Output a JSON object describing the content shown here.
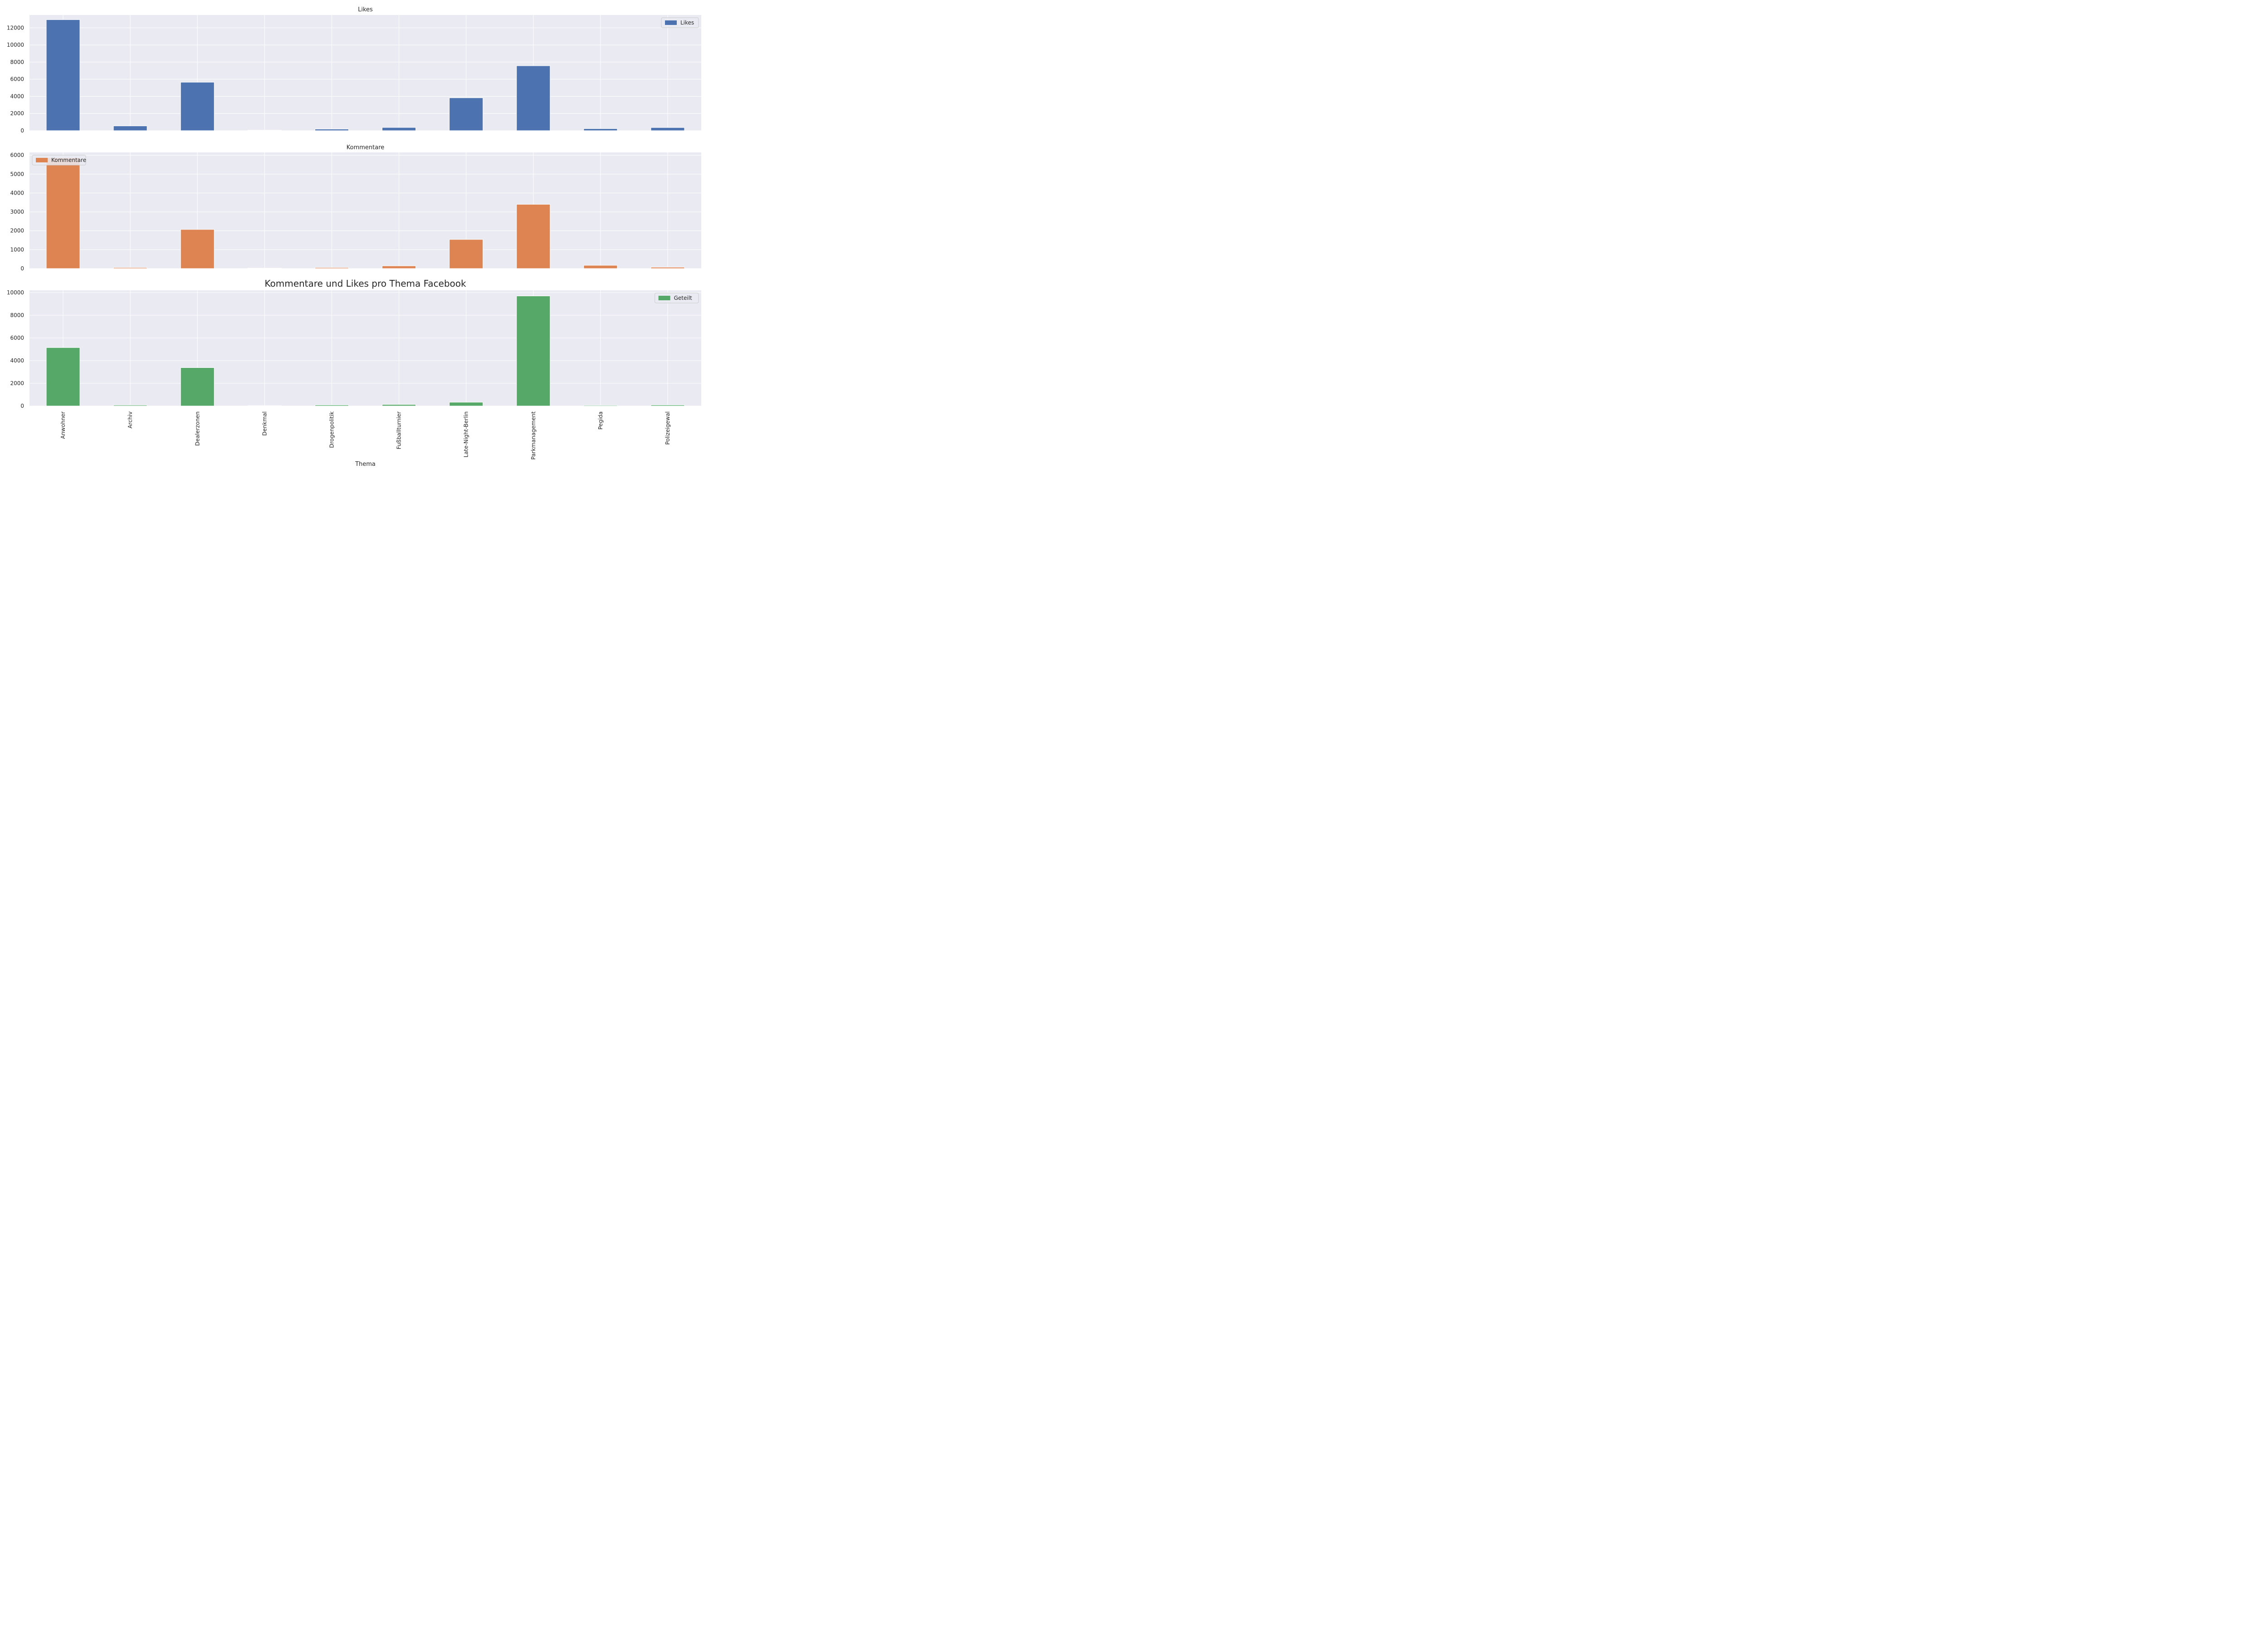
{
  "figure": {
    "suptitle": "Kommentare und Likes pro Thema Facebook",
    "xlabel": "Thema"
  },
  "chart_data": [
    {
      "type": "bar",
      "title": "Likes",
      "categories": [
        "Anwohner",
        "Archiv",
        "Dealerzonen",
        "Denkmal",
        "Drogenpolitik",
        "Fußballturnier",
        "Late-Night-Berlin",
        "Parkmanagement",
        "Pegida",
        "Polizeigewal"
      ],
      "series": [
        {
          "name": "Likes",
          "values": [
            12950,
            550,
            5650,
            50,
            180,
            370,
            3830,
            7570,
            230,
            360
          ],
          "color": "#4c72b0"
        }
      ],
      "ylim": [
        0,
        13500
      ],
      "yticks": [
        0,
        2000,
        4000,
        6000,
        8000,
        10000,
        12000
      ],
      "legend": "upper right",
      "show_xticklabels": false,
      "grid": true
    },
    {
      "type": "bar",
      "title": "Kommentare",
      "categories": [
        "Anwohner",
        "Archiv",
        "Dealerzonen",
        "Denkmal",
        "Drogenpolitik",
        "Fußballturnier",
        "Late-Night-Berlin",
        "Parkmanagement",
        "Pegida",
        "Polizeigewal"
      ],
      "series": [
        {
          "name": "Kommentare",
          "values": [
            5870,
            50,
            2070,
            20,
            50,
            140,
            1540,
            3400,
            170,
            70
          ],
          "color": "#dd8452"
        }
      ],
      "ylim": [
        0,
        6150
      ],
      "yticks": [
        0,
        1000,
        2000,
        3000,
        4000,
        5000,
        6000
      ],
      "legend": "upper left",
      "show_xticklabels": false,
      "grid": true
    },
    {
      "type": "bar",
      "title": "",
      "categories": [
        "Anwohner",
        "Archiv",
        "Dealerzonen",
        "Denkmal",
        "Drogenpolitik",
        "Fußballturnier",
        "Late-Night-Berlin",
        "Parkmanagement",
        "Pegida",
        "Polizeigewal"
      ],
      "series": [
        {
          "name": "Geteilt",
          "values": [
            5150,
            80,
            3380,
            30,
            90,
            130,
            330,
            9700,
            60,
            90
          ],
          "color": "#55a868"
        }
      ],
      "ylim": [
        0,
        10200
      ],
      "yticks": [
        0,
        2000,
        4000,
        6000,
        8000,
        10000
      ],
      "legend": "upper right",
      "show_xticklabels": true,
      "grid": true
    }
  ]
}
